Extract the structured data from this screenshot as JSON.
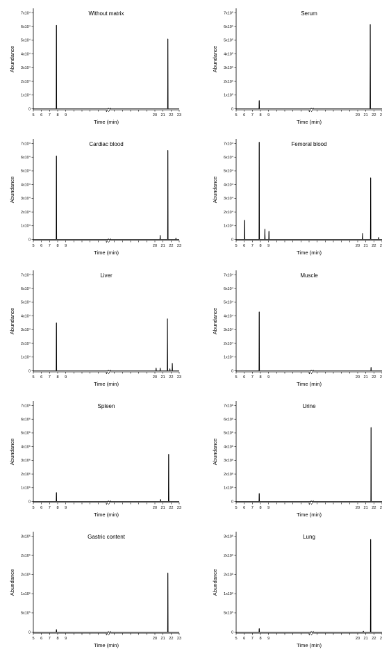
{
  "xlabel": "Time (min)",
  "ylabel": "Abundance",
  "x_ticks_left": [
    5,
    6,
    7,
    8,
    9
  ],
  "x_ticks_right": [
    20,
    21,
    22,
    23
  ],
  "chart_data": [
    {
      "type": "line",
      "title": "Without matrix",
      "xlabel": "Time (min)",
      "ylabel": "Abundance",
      "x_axis_break": [
        9.3,
        19.7
      ],
      "xlim": [
        5,
        23
      ],
      "ylim": [
        0,
        70000
      ],
      "ytick_labels": [
        "0",
        "1x10⁴",
        "2x10⁴",
        "3x10⁴",
        "4x10⁴",
        "5x10⁴",
        "6x10⁴",
        "7x10⁴"
      ],
      "peaks": [
        {
          "x": 7.85,
          "y": 61000
        },
        {
          "x": 21.6,
          "y": 51000
        }
      ]
    },
    {
      "type": "line",
      "title": "Serum",
      "xlabel": "Time (min)",
      "ylabel": "Abundance",
      "x_axis_break": [
        9.3,
        19.7
      ],
      "xlim": [
        5,
        23
      ],
      "ylim": [
        0,
        700000
      ],
      "ytick_labels": [
        "0",
        "1x10⁵",
        "2x10⁵",
        "3x10⁵",
        "4x10⁵",
        "5x10⁵",
        "6x10⁵",
        "7x10⁵"
      ],
      "peaks": [
        {
          "x": 7.85,
          "y": 60000
        },
        {
          "x": 21.55,
          "y": 615000
        }
      ]
    },
    {
      "type": "line",
      "title": "Cardiac blood",
      "xlabel": "Time (min)",
      "ylabel": "Abundance",
      "x_axis_break": [
        9.3,
        19.7
      ],
      "xlim": [
        5,
        23
      ],
      "ylim": [
        0,
        70000
      ],
      "ytick_labels": [
        "0",
        "1x10⁴",
        "2x10⁴",
        "3x10⁴",
        "4x10⁴",
        "5x10⁴",
        "6x10⁴",
        "7x10⁴"
      ],
      "peaks": [
        {
          "x": 7.85,
          "y": 61000
        },
        {
          "x": 20.65,
          "y": 3000
        },
        {
          "x": 21.6,
          "y": 65000
        },
        {
          "x": 22.6,
          "y": 1000
        }
      ]
    },
    {
      "type": "line",
      "title": "Femoral blood",
      "xlabel": "Time (min)",
      "ylabel": "Abundance",
      "xlim": [
        5,
        23
      ],
      "ylim": [
        0,
        70000
      ],
      "ytick_labels": [
        "0",
        "1x10⁴",
        "2x10⁴",
        "3x10⁴",
        "4x10⁴",
        "5x10⁴",
        "6x10⁴",
        "7x10⁴"
      ],
      "peaks": [
        {
          "x": 6.05,
          "y": 14000
        },
        {
          "x": 7.85,
          "y": 71000
        },
        {
          "x": 8.55,
          "y": 7500
        },
        {
          "x": 9.05,
          "y": 6000
        },
        {
          "x": 20.6,
          "y": 4500
        },
        {
          "x": 21.6,
          "y": 45000
        },
        {
          "x": 22.6,
          "y": 1500
        }
      ]
    },
    {
      "type": "line",
      "title": "Liver",
      "xlabel": "Time (min)",
      "ylabel": "Abundance",
      "x_axis_break": [
        9.3,
        19.7
      ],
      "xlim": [
        5,
        23
      ],
      "ylim": [
        0,
        70000
      ],
      "ytick_labels": [
        "0",
        "1x10⁴",
        "2x10⁴",
        "3x10⁴",
        "4x10⁴",
        "5x10⁴",
        "6x10⁴",
        "7x10⁴"
      ],
      "peaks": [
        {
          "x": 7.85,
          "y": 35000
        },
        {
          "x": 20.15,
          "y": 2000
        },
        {
          "x": 20.65,
          "y": 2000
        },
        {
          "x": 21.55,
          "y": 38000
        },
        {
          "x": 21.85,
          "y": 1500
        },
        {
          "x": 22.15,
          "y": 5500
        }
      ]
    },
    {
      "type": "line",
      "title": "Muscle",
      "xlabel": "Time (min)",
      "ylabel": "Abundance",
      "x_axis_break": [
        9.3,
        19.7
      ],
      "xlim": [
        5,
        23
      ],
      "ylim": [
        0,
        70000
      ],
      "ytick_labels": [
        "0",
        "1x10⁴",
        "2x10⁴",
        "3x10⁴",
        "4x10⁴",
        "5x10⁴",
        "6x10⁴",
        "7x10⁴"
      ],
      "peaks": [
        {
          "x": 7.85,
          "y": 43000
        },
        {
          "x": 21.65,
          "y": 2500
        }
      ]
    },
    {
      "type": "line",
      "title": "Spleen",
      "xlabel": "Time (min)",
      "ylabel": "Abundance",
      "x_axis_break": [
        9.3,
        19.7
      ],
      "xlim": [
        5,
        23
      ],
      "ylim": [
        0,
        7000000
      ],
      "ytick_labels": [
        "0",
        "1x10⁶",
        "2x10⁶",
        "3x10⁶",
        "4x10⁶",
        "5x10⁶",
        "6x10⁶",
        "7x10⁶"
      ],
      "peaks": [
        {
          "x": 7.85,
          "y": 650000
        },
        {
          "x": 20.7,
          "y": 150000
        },
        {
          "x": 21.7,
          "y": 3450000
        }
      ]
    },
    {
      "type": "line",
      "title": "Urine",
      "xlabel": "Time (min)",
      "ylabel": "Abundance",
      "x_axis_break": [
        9.3,
        19.7
      ],
      "xlim": [
        5,
        23
      ],
      "ylim": [
        0,
        7000000
      ],
      "ytick_labels": [
        "0",
        "1x10⁶",
        "2x10⁶",
        "3x10⁶",
        "4x10⁶",
        "5x10⁶",
        "6x10⁶",
        "7x10⁶"
      ],
      "peaks": [
        {
          "x": 7.85,
          "y": 580000
        },
        {
          "x": 21.65,
          "y": 5400000
        }
      ]
    },
    {
      "type": "line",
      "title": "Gastric content",
      "xlabel": "Time (min)",
      "ylabel": "Abundance",
      "x_axis_break": [
        9.3,
        19.7
      ],
      "xlim": [
        5,
        23
      ],
      "ylim": [
        0,
        3000000
      ],
      "ytick_labels": [
        "0",
        "5x10⁵",
        "1x10⁶",
        "2x10⁶",
        "2x10⁶",
        "3x10⁶"
      ],
      "peaks": [
        {
          "x": 7.85,
          "y": 80000
        },
        {
          "x": 21.6,
          "y": 1850000
        }
      ]
    },
    {
      "type": "line",
      "title": "Lung",
      "xlabel": "Time (min)",
      "ylabel": "Abundance",
      "x_axis_break": [
        9.3,
        19.7
      ],
      "xlim": [
        5,
        23
      ],
      "ylim": [
        0,
        3000000
      ],
      "ytick_labels": [
        "0",
        "5x10⁵",
        "1x10⁶",
        "2x10⁶",
        "2x10⁶",
        "3x10⁶"
      ],
      "peaks": [
        {
          "x": 7.85,
          "y": 110000
        },
        {
          "x": 20.7,
          "y": 30000
        },
        {
          "x": 21.6,
          "y": 2900000
        }
      ]
    }
  ]
}
